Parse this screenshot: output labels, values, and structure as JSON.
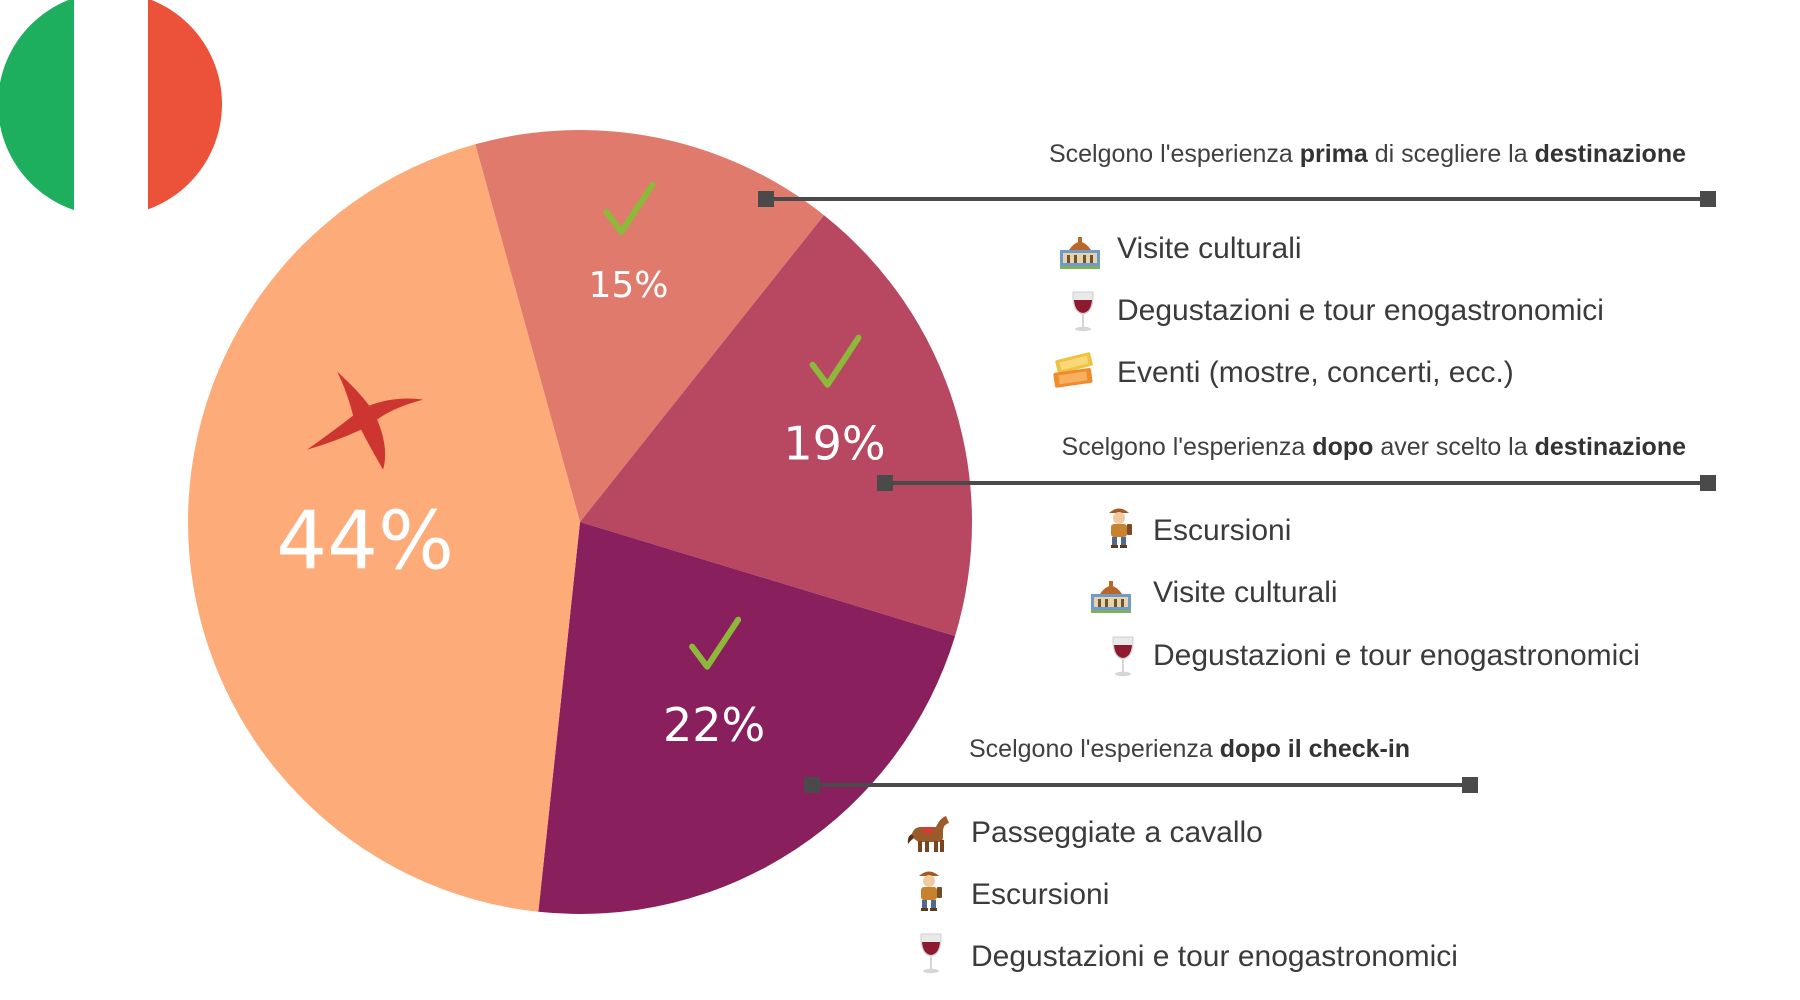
{
  "chart_data": {
    "type": "pie",
    "slices": [
      {
        "label": "15%",
        "value": 15,
        "color": "#E07A6C",
        "mark": "check"
      },
      {
        "label": "19%",
        "value": 19,
        "color": "#B84862",
        "mark": "check"
      },
      {
        "label": "22%",
        "value": 22,
        "color": "#891F5D",
        "mark": "check"
      },
      {
        "label": "44%",
        "value": 44,
        "color": "#FDAB79",
        "mark": "cross"
      }
    ]
  },
  "colors": {
    "flag_green": "#1DAE5E",
    "flag_white": "#FFFFFF",
    "flag_red": "#EC513A",
    "check": "#8DB93B",
    "cross": "#CC3530",
    "connector": "#4A4A4A"
  },
  "groups": [
    {
      "heading": {
        "pre": "Scelgono l'esperienza ",
        "b1": "prima",
        "mid": " di scegliere la ",
        "b2": "destinazione"
      },
      "items": [
        {
          "icon": "castle-icon",
          "text": "Visite culturali"
        },
        {
          "icon": "wine-glass-icon",
          "text": "Degustazioni e tour enogastronomici"
        },
        {
          "icon": "tickets-icon",
          "text": "Eventi (mostre, concerti, ecc.)"
        }
      ]
    },
    {
      "heading": {
        "pre": "Scelgono l'esperienza ",
        "b1": "dopo",
        "mid": " aver scelto la ",
        "b2": "destinazione"
      },
      "items": [
        {
          "icon": "hiker-icon",
          "text": "Escursioni"
        },
        {
          "icon": "castle-icon",
          "text": "Visite culturali"
        },
        {
          "icon": "wine-glass-icon",
          "text": "Degustazioni e tour enogastronomici"
        }
      ]
    },
    {
      "heading": {
        "pre": "Scelgono l'esperienza ",
        "b1": "dopo il check-in",
        "mid": "",
        "b2": ""
      },
      "items": [
        {
          "icon": "horse-icon",
          "text": "Passeggiate a cavallo"
        },
        {
          "icon": "hiker-icon",
          "text": "Escursioni"
        },
        {
          "icon": "wine-glass-icon",
          "text": "Degustazioni e tour enogastronomici"
        }
      ]
    }
  ]
}
